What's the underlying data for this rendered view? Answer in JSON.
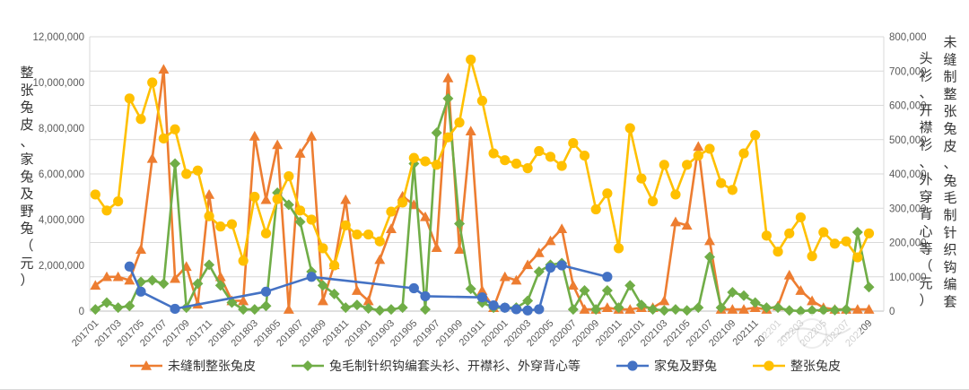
{
  "chart_data": {
    "type": "line",
    "title": "",
    "grid": true,
    "legend_position": "bottom",
    "categories": [
      "201701",
      "201702",
      "201703",
      "201704",
      "201705",
      "201706",
      "201707",
      "201708",
      "201709",
      "201710",
      "201711",
      "201712",
      "201801",
      "201802",
      "201803",
      "201804",
      "201805",
      "201806",
      "201807",
      "201808",
      "201809",
      "201810",
      "201811",
      "201812",
      "201901",
      "201902",
      "201903",
      "201904",
      "201905",
      "201906",
      "201907",
      "201908",
      "201909",
      "201910",
      "201911",
      "201912",
      "202001",
      "202002",
      "202003",
      "202004",
      "202005",
      "202006",
      "202007",
      "202008",
      "202009",
      "202010",
      "202011",
      "202012",
      "202101",
      "202102",
      "202103",
      "202104",
      "202105",
      "202106",
      "202107",
      "202108",
      "202109",
      "202110",
      "202111",
      "202112",
      "202201",
      "202202",
      "202203",
      "202204",
      "202205",
      "202206",
      "202207",
      "202208",
      "202209"
    ],
    "shown_tick_labels": [
      "201701",
      "201703",
      "201705",
      "201707",
      "201709",
      "201711",
      "201801",
      "201803",
      "201805",
      "201807",
      "201809",
      "201811",
      "201901",
      "201903",
      "201905",
      "201907",
      "201909",
      "201911",
      "202001",
      "202003",
      "202005",
      "202007",
      "202009",
      "202011",
      "202101",
      "202103",
      "202105",
      "202107",
      "202109",
      "202111",
      "202201",
      "202203",
      "202205",
      "202207",
      "202209"
    ],
    "left_axis": {
      "title": "整张兔皮、家兔及野兔（元）",
      "min": 0,
      "max": 12000000,
      "step": 2000000,
      "ticks": [
        "0",
        "2,000,000",
        "4,000,000",
        "6,000,000",
        "8,000,000",
        "10,000,000",
        "12,000,000"
      ]
    },
    "right_axis": {
      "title": "未缝制整张兔皮、兔毛制针织钩编套头衫、开襟衫、外穿背心等（元）",
      "title_col_outer": "未缝制整张兔皮、兔毛制针织钩编套",
      "title_col_inner": "头衫、开襟衫、外穿背心等（元）",
      "min": 0,
      "max": 800000,
      "step": 100000,
      "ticks": [
        "0",
        "100,000",
        "200,000",
        "300,000",
        "400,000",
        "500,000",
        "600,000",
        "700,000",
        "800,000"
      ]
    },
    "series": [
      {
        "id": "unsewn-whole-rabbit-skins",
        "name": "未缝制整张兔皮",
        "axis": "right",
        "color": "#ED7D31",
        "marker": "triangle",
        "values": [
          75000,
          100000,
          100000,
          90000,
          180000,
          445000,
          705000,
          95000,
          130000,
          20000,
          340000,
          100000,
          30000,
          30000,
          510000,
          325000,
          485000,
          5000,
          460000,
          510000,
          30000,
          135000,
          325000,
          60000,
          30000,
          150000,
          240000,
          335000,
          310000,
          275000,
          185000,
          680000,
          180000,
          525000,
          60000,
          10000,
          100000,
          90000,
          135000,
          170000,
          205000,
          240000,
          75000,
          5000,
          5000,
          10000,
          5000,
          5000,
          10000,
          10000,
          30000,
          260000,
          250000,
          480000,
          205000,
          5000,
          5000,
          5000,
          10000,
          5000,
          15000,
          105000,
          60000,
          30000,
          10000,
          5000,
          5000,
          5000,
          5000
        ]
      },
      {
        "id": "rabbit-hair-knitwear",
        "name": "兔毛制针织钩编套头衫、开襟衫、外穿背心等",
        "axis": "right",
        "color": "#70AD47",
        "marker": "diamond",
        "values": [
          5000,
          25000,
          10000,
          15000,
          85000,
          90000,
          80000,
          430000,
          10000,
          80000,
          135000,
          75000,
          25000,
          5000,
          5000,
          15000,
          345000,
          310000,
          260000,
          115000,
          75000,
          50000,
          10000,
          18000,
          8000,
          2000,
          5000,
          10000,
          430000,
          5000,
          520000,
          620000,
          255000,
          65000,
          25000,
          10000,
          10000,
          10000,
          30000,
          115000,
          135000,
          140000,
          5000,
          60000,
          5000,
          60000,
          10000,
          75000,
          18000,
          5000,
          2000,
          5000,
          2000,
          10000,
          158000,
          10000,
          55000,
          45000,
          25000,
          10000,
          10000,
          2000,
          0,
          2000,
          3000,
          3000,
          5000,
          230000,
          70000
        ]
      },
      {
        "id": "domestic-and-wild-rabbits",
        "name": "家兔及野兔",
        "axis": "left",
        "color": "#4472C4",
        "marker": "circle",
        "values": [
          null,
          null,
          null,
          1950000,
          850000,
          null,
          null,
          100000,
          null,
          null,
          null,
          null,
          null,
          null,
          null,
          850000,
          null,
          null,
          null,
          1500000,
          null,
          null,
          null,
          null,
          null,
          null,
          null,
          null,
          1000000,
          650000,
          null,
          null,
          null,
          null,
          600000,
          250000,
          150000,
          80000,
          30000,
          80000,
          1900000,
          2000000,
          null,
          null,
          null,
          1500000,
          null,
          null,
          null,
          null,
          null,
          null,
          null,
          null,
          null,
          null,
          null,
          null,
          null,
          null,
          null,
          null,
          null,
          null,
          null,
          null,
          null,
          null,
          null
        ]
      },
      {
        "id": "whole-rabbit-skins",
        "name": "整张兔皮",
        "axis": "left",
        "color": "#FFC000",
        "marker": "circle",
        "values": [
          5100000,
          4400000,
          4800000,
          9300000,
          8400000,
          10000000,
          7550000,
          7950000,
          6000000,
          6150000,
          4150000,
          3700000,
          3800000,
          2200000,
          5000000,
          3400000,
          4900000,
          5900000,
          4400000,
          4000000,
          2750000,
          2000000,
          3750000,
          3350000,
          3350000,
          3050000,
          4350000,
          4750000,
          6700000,
          6550000,
          6400000,
          7600000,
          8250000,
          11000000,
          9200000,
          6900000,
          6600000,
          6450000,
          6250000,
          7000000,
          6750000,
          6350000,
          7350000,
          6800000,
          4450000,
          5150000,
          2750000,
          8000000,
          5800000,
          4800000,
          6400000,
          5100000,
          6400000,
          6800000,
          7100000,
          5600000,
          5300000,
          6900000,
          7700000,
          3300000,
          2600000,
          3400000,
          4100000,
          2400000,
          3450000,
          2950000,
          3050000,
          2350000,
          3400000
        ]
      }
    ]
  }
}
